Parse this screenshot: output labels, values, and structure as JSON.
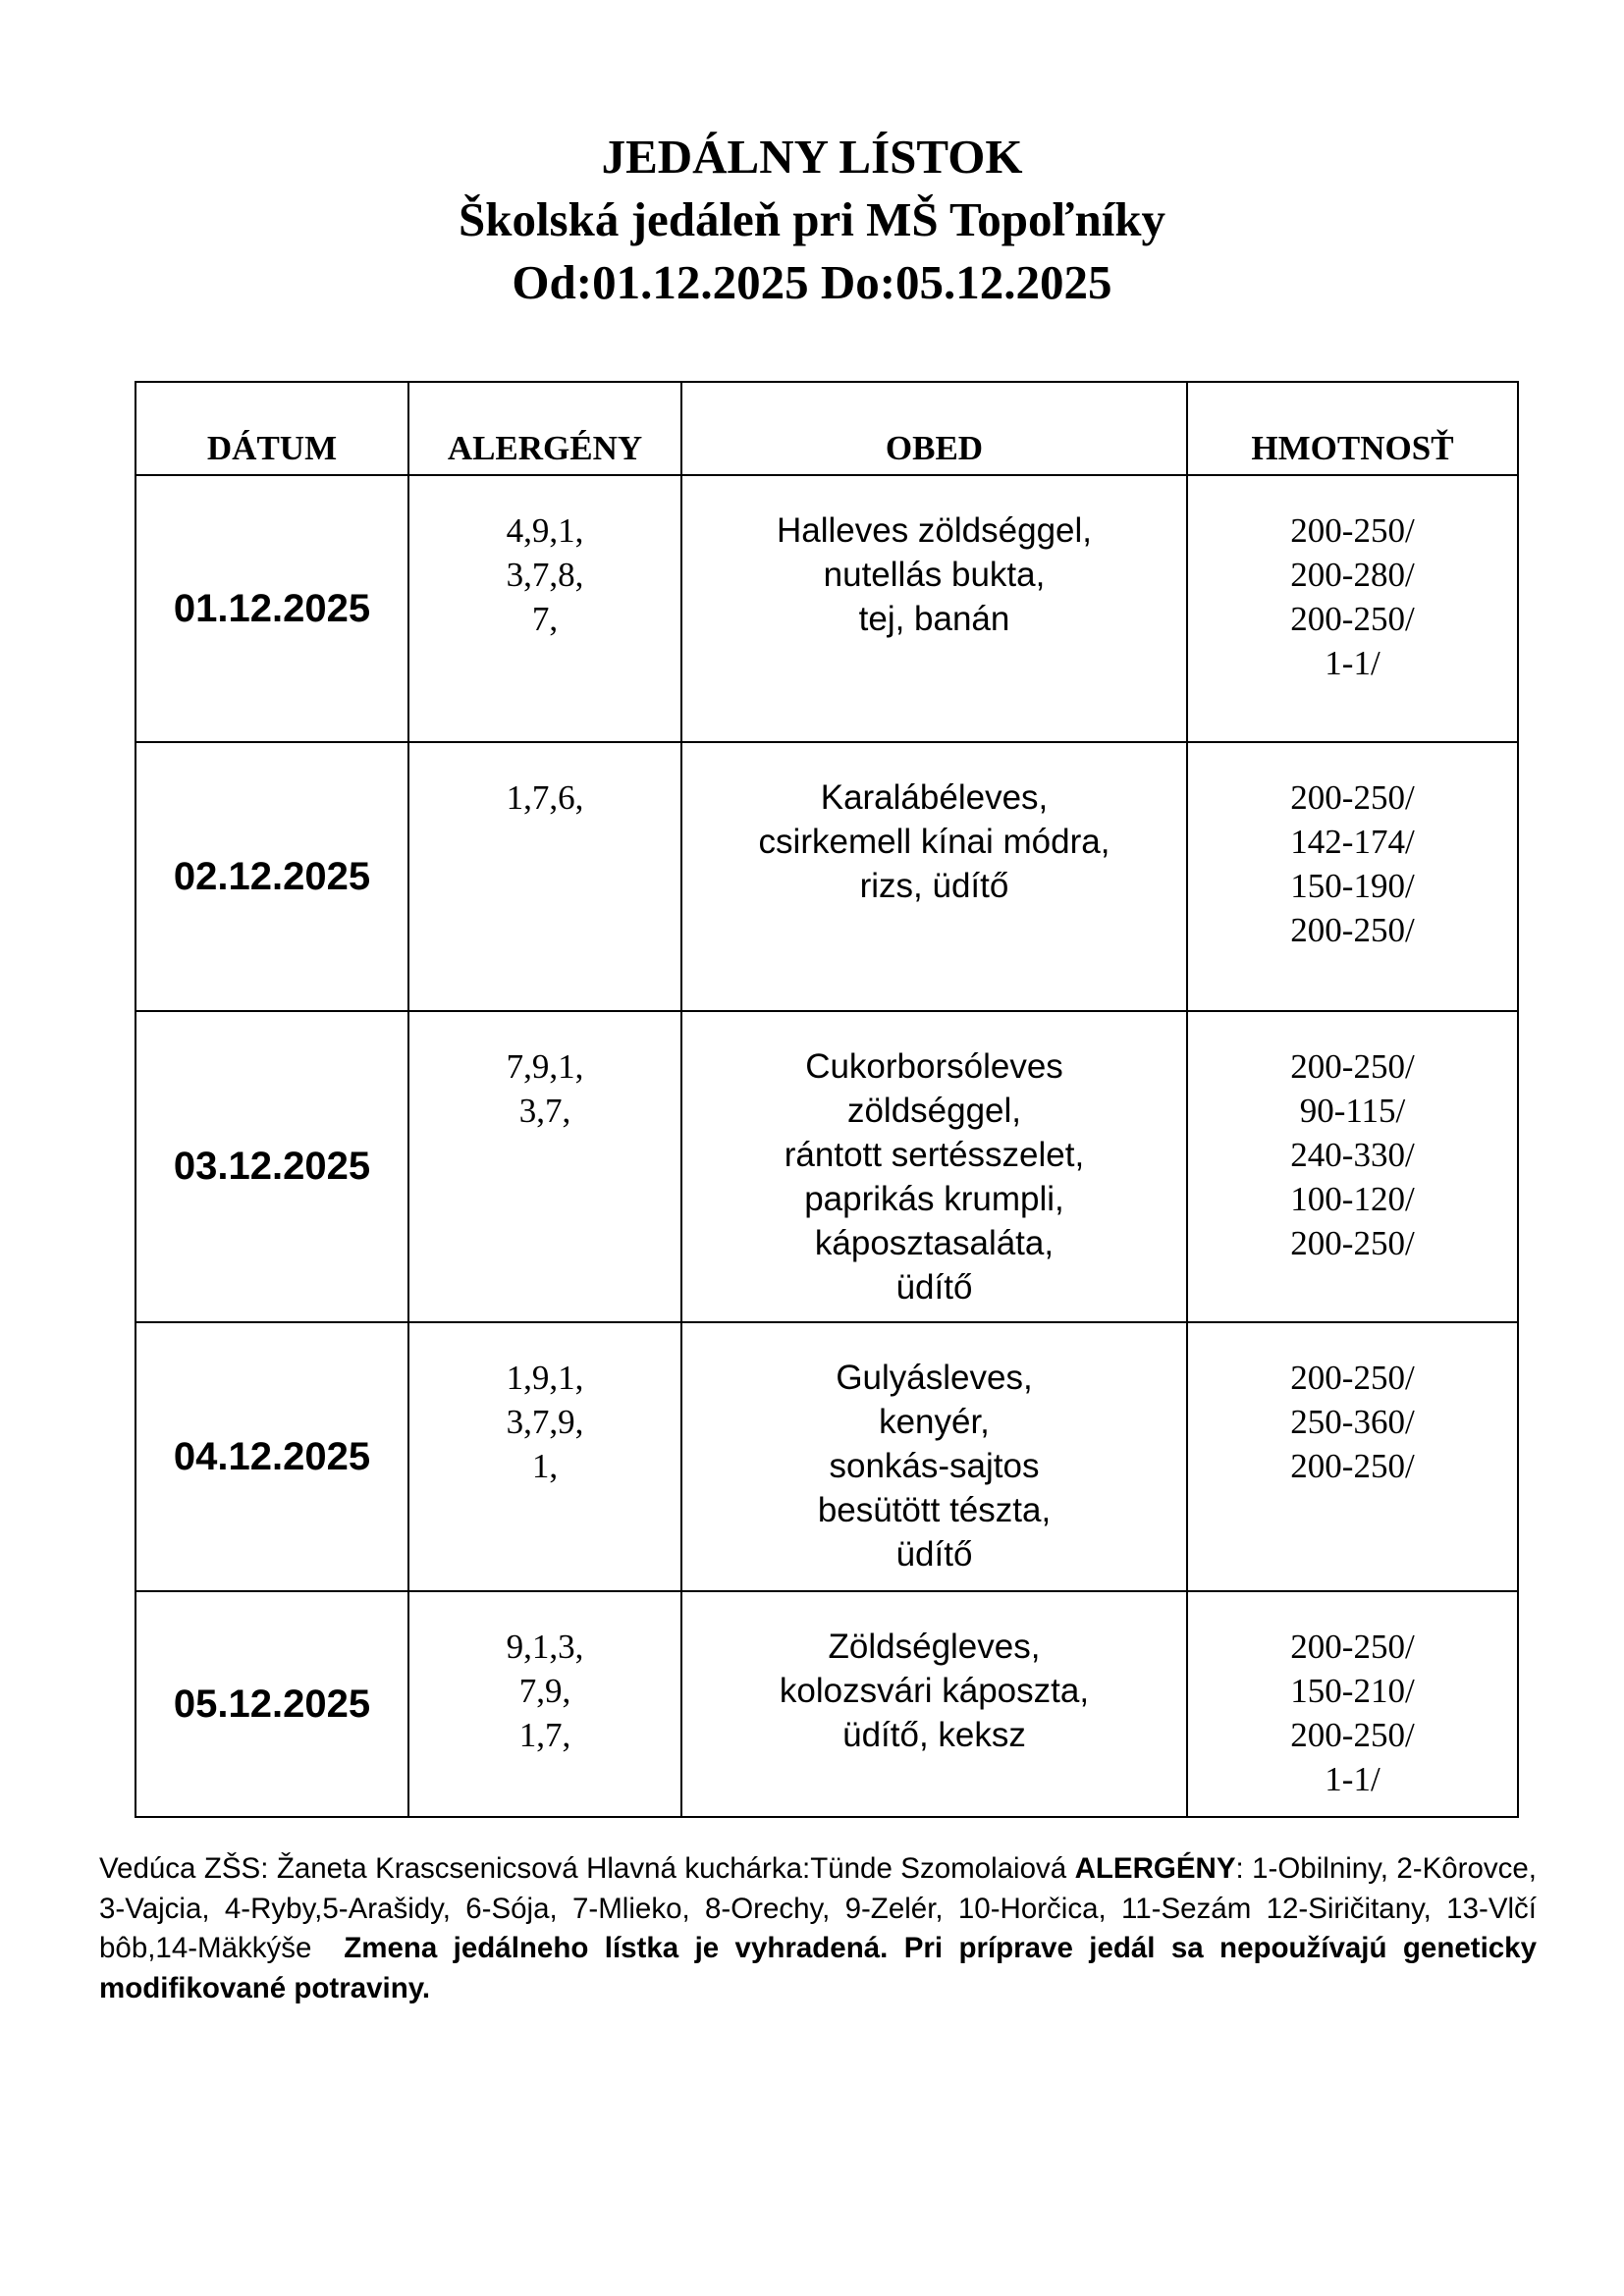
{
  "title": {
    "line1": "JEDÁLNY LÍSTOK",
    "line2": "Školská jedáleň pri MŠ Topoľníky",
    "line3": "Od:01.12.2025 Do:05.12.2025"
  },
  "table": {
    "headers": [
      "DÁTUM",
      "ALERGÉNY",
      "OBED",
      "HMOTNOSŤ"
    ],
    "rows": [
      {
        "date": "01.12.2025",
        "allergens": [
          "4,9,1,",
          "3,7,8,",
          "7,"
        ],
        "meal": [
          "Halleves zöldséggel,",
          "nutellás bukta,",
          "tej, banán"
        ],
        "weights": [
          "200-250/",
          "200-280/",
          "200-250/",
          "1-1/"
        ]
      },
      {
        "date": "02.12.2025",
        "allergens": [
          "1,7,6,"
        ],
        "meal": [
          "Karalábéleves,",
          "csirkemell kínai módra,",
          "rizs, üdítő"
        ],
        "weights": [
          "200-250/",
          "142-174/",
          "150-190/",
          "200-250/"
        ]
      },
      {
        "date": "03.12.2025",
        "allergens": [
          "7,9,1,",
          "3,7,"
        ],
        "meal": [
          "Cukorborsóleves",
          "zöldséggel,",
          "rántott sertésszelet,",
          "paprikás krumpli,",
          "káposztasaláta,",
          "üdítő"
        ],
        "weights": [
          "200-250/",
          "90-115/",
          "240-330/",
          "100-120/",
          "200-250/"
        ]
      },
      {
        "date": "04.12.2025",
        "allergens": [
          "1,9,1,",
          "3,7,9,",
          "1,"
        ],
        "meal": [
          "Gulyásleves,",
          "kenyér,",
          "sonkás-sajtos",
          "besütött tészta,",
          "üdítő"
        ],
        "weights": [
          "200-250/",
          "250-360/",
          "200-250/"
        ]
      },
      {
        "date": "05.12.2025",
        "allergens": [
          "9,1,3,",
          "7,9,",
          "1,7,"
        ],
        "meal": [
          "Zöldségleves,",
          "kolozsvári káposzta,",
          "üdítő, keksz"
        ],
        "weights": [
          "200-250/",
          "150-210/",
          "200-250/",
          "1-1/"
        ]
      }
    ]
  },
  "footer": {
    "staff": "Vedúca ZŠS: Žaneta Krascsenicsová Hlavná kuchárka:Tünde Szomolaiová",
    "allergens_label": "ALERGÉNY",
    "allergens_list": ": 1-Obilniny, 2-Kôrovce, 3-Vajcia, 4-Ryby,5-Arašidy, 6-Sója, 7-Mlieko, 8-Orechy, 9-Zelér, 10-Horčica, 11-Sezám 12-Siričitany, 13-Vlčí bôb,14-Mäkkýše",
    "notice": "Zmena jedálneho lístka je vyhradená. Pri príprave jedál sa nepoužívajú geneticky modifikované potraviny."
  }
}
